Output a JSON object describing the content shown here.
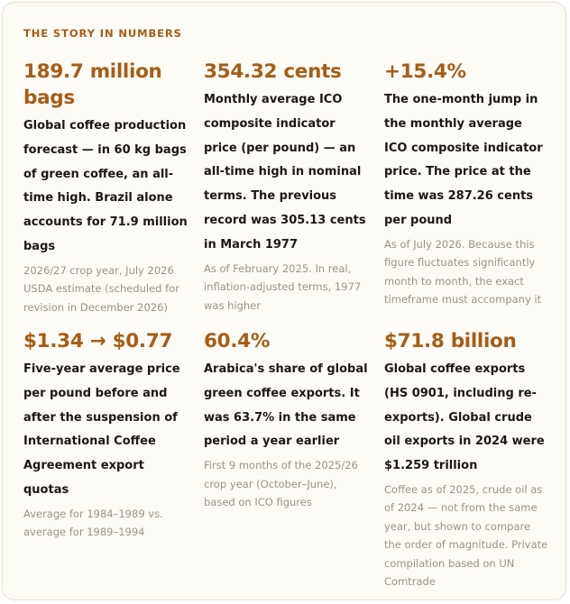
{
  "eyebrow": "THE STORY IN NUMBERS",
  "stats": [
    {
      "headline": "189.7 million bags",
      "description": "Global coffee production forecast — in 60 kg bags of green coffee, an all-time high. Brazil alone accounts for 71.9 million bags",
      "note": "2026/27 crop year, July 2026 USDA estimate (scheduled for revision in December 2026)"
    },
    {
      "headline": "354.32 cents",
      "description": "Monthly average ICO composite indicator price (per pound) — an all-time high in nominal terms. The previous record was 305.13 cents in March 1977",
      "note": "As of February 2025. In real, inflation-adjusted terms, 1977 was higher"
    },
    {
      "headline": "+15.4%",
      "description": "The one-month jump in the monthly average ICO composite indicator price. The price at the time was 287.26 cents per pound",
      "note": "As of July 2026. Because this figure fluctuates significantly month to month, the exact timeframe must accompany it"
    },
    {
      "headline": "$1.34 → $0.77",
      "description": "Five-year average price per pound before and after the suspension of International Coffee Agreement export quotas",
      "note": "Average for 1984–1989 vs. average for 1989–1994"
    },
    {
      "headline": "60.4%",
      "description": "Arabica's share of global green coffee exports. It was 63.7% in the same period a year earlier",
      "note": "First 9 months of the 2025/26 crop year (October–June), based on ICO figures"
    },
    {
      "headline": "$71.8 billion",
      "description": "Global coffee exports (HS 0901, including re-exports). Global crude oil exports in 2024 were $1.259 trillion",
      "note": "Coffee as of 2025, crude oil as of 2024 — not from the same year, but shown to compare the order of magnitude. Private compilation based on UN Comtrade"
    }
  ]
}
